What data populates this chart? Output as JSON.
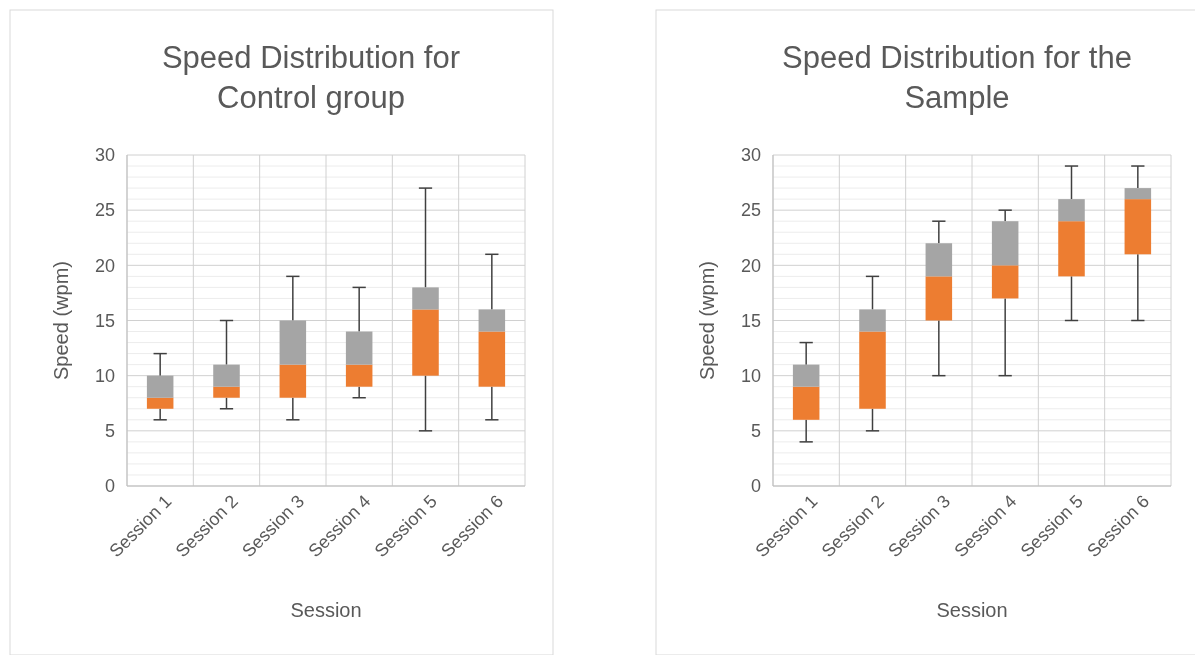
{
  "chart_data": [
    {
      "type": "box",
      "title": "Speed Distribution for Control group",
      "xlabel": "Session",
      "ylabel": "Speed (wpm)",
      "categories": [
        "Session 1",
        "Session 2",
        "Session 3",
        "Session 4",
        "Session 5",
        "Session 6"
      ],
      "ylim": [
        0,
        30
      ],
      "yticks": [
        0,
        5,
        10,
        15,
        20,
        25,
        30
      ],
      "grid": true,
      "series": [
        {
          "color": "#ed7d31",
          "boxes": [
            {
              "low": 6,
              "q1": 7,
              "median": 8,
              "q3": 10,
              "high": 12
            },
            {
              "low": 7,
              "q1": 8,
              "median": 9,
              "q3": 11,
              "high": 15
            },
            {
              "low": 6,
              "q1": 8,
              "median": 11,
              "q3": 15,
              "high": 19
            },
            {
              "low": 8,
              "q1": 9,
              "median": 11,
              "q3": 14,
              "high": 18
            },
            {
              "low": 5,
              "q1": 10,
              "median": 16,
              "q3": 18,
              "high": 27
            },
            {
              "low": 6,
              "q1": 9,
              "median": 14,
              "q3": 16,
              "high": 21
            }
          ]
        }
      ]
    },
    {
      "type": "box",
      "title": "Speed Distribution for the Sample",
      "xlabel": "Session",
      "ylabel": "Speed (wpm)",
      "categories": [
        "Session 1",
        "Session 2",
        "Session 3",
        "Session 4",
        "Session 5",
        "Session 6"
      ],
      "ylim": [
        0,
        30
      ],
      "yticks": [
        0,
        5,
        10,
        15,
        20,
        25,
        30
      ],
      "grid": true,
      "series": [
        {
          "color": "#ed7d31",
          "boxes": [
            {
              "low": 4,
              "q1": 6,
              "median": 9,
              "q3": 11,
              "high": 13
            },
            {
              "low": 5,
              "q1": 7,
              "median": 14,
              "q3": 16,
              "high": 19
            },
            {
              "low": 10,
              "q1": 15,
              "median": 19,
              "q3": 22,
              "high": 24
            },
            {
              "low": 10,
              "q1": 17,
              "median": 20,
              "q3": 24,
              "high": 25
            },
            {
              "low": 15,
              "q1": 19,
              "median": 24,
              "q3": 26,
              "high": 29
            },
            {
              "low": 15,
              "q1": 21,
              "median": 26,
              "q3": 27,
              "high": 29
            }
          ]
        }
      ]
    }
  ]
}
